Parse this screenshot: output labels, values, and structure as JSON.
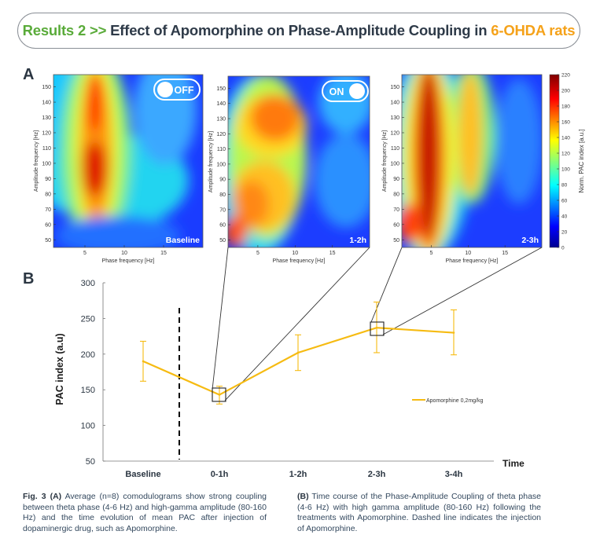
{
  "header": {
    "prefix": "Results 2 >>",
    "title": "Effect of Apomorphine on Phase-Amplitude Coupling in",
    "highlight": "6-OHDA rats"
  },
  "panel_labels": {
    "a": "A",
    "b": "B"
  },
  "colors": {
    "green": "#5aab3a",
    "orange": "#f5a21a",
    "line": "#f6bb12",
    "dark": "#2e3a48"
  },
  "chart_data": [
    {
      "type": "heatmap",
      "panels": [
        {
          "label": "Baseline",
          "toggle": "OFF"
        },
        {
          "label": "1-2h",
          "toggle": "ON"
        },
        {
          "label": "2-3h",
          "toggle": ""
        }
      ],
      "xlabel": "Phase frequency [Hz]",
      "ylabel": "Amplitude frequency [Hz]",
      "xticks": [
        5,
        10,
        15
      ],
      "yticks": [
        50,
        60,
        70,
        80,
        90,
        100,
        110,
        120,
        130,
        140,
        150
      ],
      "xlim": [
        1,
        20
      ],
      "ylim": [
        45,
        158
      ],
      "colorbar": {
        "label": "Norm. PAC index [a.u.]",
        "ticks": [
          0,
          20,
          40,
          60,
          80,
          100,
          120,
          140,
          160,
          180,
          200,
          220
        ],
        "range": [
          0,
          220
        ]
      }
    },
    {
      "type": "line",
      "categories": [
        "Baseline",
        "0-1h",
        "1-2h",
        "2-3h",
        "3-4h"
      ],
      "series": [
        {
          "name": "Apomorphine 0,2mg/kg",
          "values": [
            190,
            143,
            202,
            237,
            230
          ],
          "err_low": [
            162,
            130,
            177,
            202,
            199
          ],
          "err_high": [
            218,
            155,
            227,
            273,
            262
          ]
        }
      ],
      "xlabel": "Time",
      "ylabel": "PAC index (a.u)",
      "yticks": [
        50,
        100,
        150,
        200,
        250,
        300
      ],
      "ylim": [
        50,
        300
      ],
      "legend_position": "center-right",
      "injection_marker": "dashed vertical line between Baseline and 0-1h"
    }
  ],
  "captions": {
    "left_fig": "Fig. 3",
    "left_tag": "(A)",
    "left_text": "Average (n=8) comodulograms show strong coupling between theta phase (4-6 Hz) and high-gamma amplitude (80-160 Hz) and the time evolution of mean PAC after injection of dopaminergic drug, such as Apomorphine.",
    "right_tag": "(B)",
    "right_text": "Time course of the Phase-Amplitude Coupling of theta phase (4-6 Hz) with high gamma amplitude (80-160 Hz) following the treatments with Apomorphine. Dashed line indicates the injection of Apomorphine."
  }
}
